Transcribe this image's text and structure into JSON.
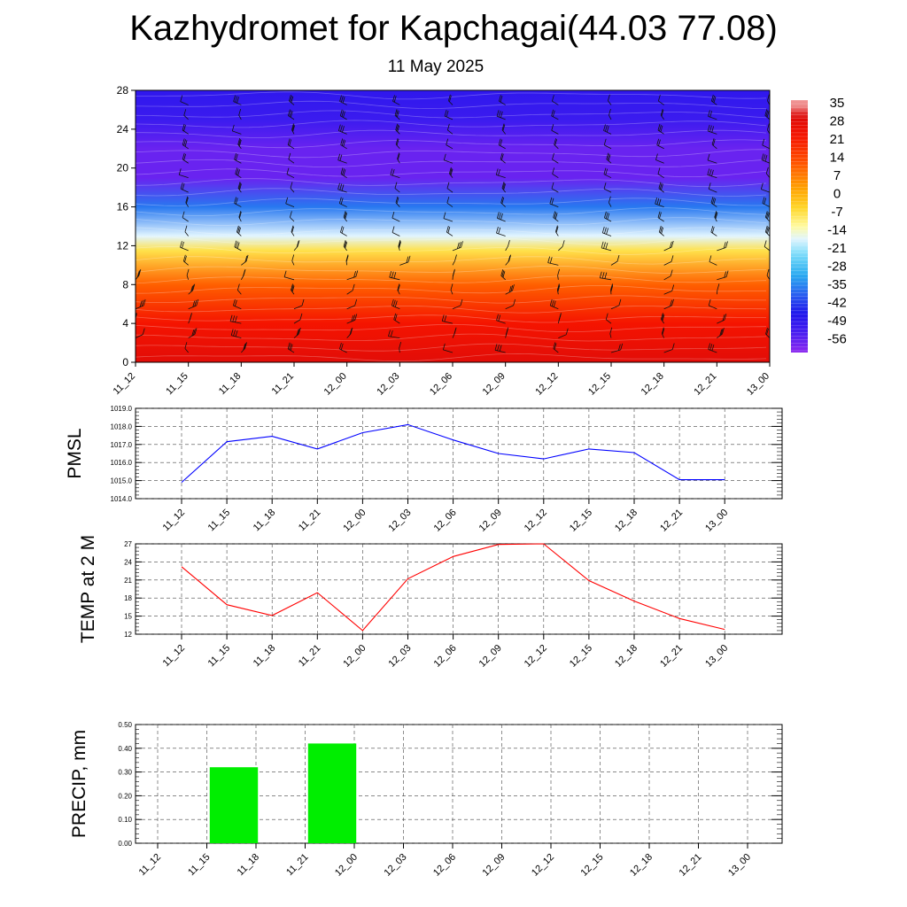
{
  "title": "Kazhydromet for Kapchagai(44.03 77.08)",
  "subtitle": "11 May 2025",
  "times": [
    "11_12",
    "11_15",
    "11_18",
    "11_21",
    "12_00",
    "12_03",
    "12_06",
    "12_09",
    "12_12",
    "12_15",
    "12_18",
    "12_21",
    "13_00"
  ],
  "chart_data": [
    {
      "type": "heatmap",
      "name": "cross-section",
      "ylim": [
        0,
        28
      ],
      "yticks": [
        "0",
        "4",
        "8",
        "12",
        "16",
        "20",
        "24",
        "28"
      ],
      "color_scale": {
        "labels": [
          "35",
          "28",
          "21",
          "14",
          "7",
          "0",
          "-7",
          "-14",
          "-21",
          "-28",
          "-35",
          "-42",
          "-49",
          "-56"
        ],
        "range": [
          -60,
          38
        ]
      },
      "profile": [
        {
          "level": 0,
          "value": 30
        },
        {
          "level": 4,
          "value": 24
        },
        {
          "level": 8,
          "value": 12
        },
        {
          "level": 11.5,
          "value": -6
        },
        {
          "level": 13,
          "value": -16
        },
        {
          "level": 16,
          "value": -35
        },
        {
          "level": 19,
          "value": -56
        },
        {
          "level": 22,
          "value": -56
        },
        {
          "level": 25,
          "value": -50
        },
        {
          "level": 28,
          "value": -48
        }
      ],
      "wind_barbs": "shown"
    },
    {
      "type": "line",
      "name": "pmsl",
      "ylabel": "PMSL",
      "ylim": [
        1014,
        1019
      ],
      "yticks": [
        "1014.0",
        "1015.0",
        "1016.0",
        "1017.0",
        "1018.0",
        "1019.0"
      ],
      "color": "#0000ff",
      "values": [
        1014.9,
        1017.15,
        1017.45,
        1016.75,
        1017.65,
        1018.1,
        1017.25,
        1016.5,
        1016.2,
        1016.75,
        1016.55,
        1015.05,
        1015.05
      ]
    },
    {
      "type": "line",
      "name": "temp2m",
      "ylabel": "TEMP at 2 M",
      "ylim": [
        12,
        27
      ],
      "yticks": [
        "12",
        "15",
        "18",
        "21",
        "24",
        "27"
      ],
      "color": "#ff0000",
      "values": [
        23.2,
        16.9,
        15.1,
        18.9,
        12.6,
        21.2,
        24.9,
        26.9,
        27.0,
        20.9,
        17.5,
        14.6,
        12.8
      ]
    },
    {
      "type": "bar",
      "name": "precip",
      "ylabel": "PRECIP, mm",
      "ylim": [
        0,
        0.5
      ],
      "yticks": [
        "0.00",
        "0.10",
        "0.20",
        "0.30",
        "0.40",
        "0.50"
      ],
      "color": "#00ee00",
      "values": [
        0,
        0.32,
        0,
        0.42,
        0,
        0,
        0,
        0,
        0,
        0,
        0,
        0
      ]
    }
  ]
}
